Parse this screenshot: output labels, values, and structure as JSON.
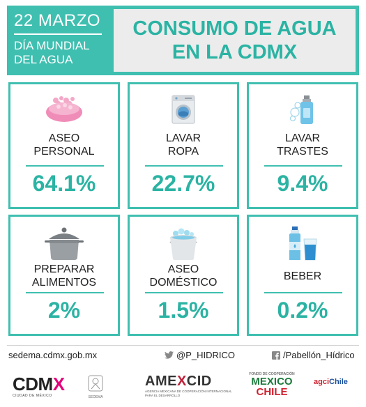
{
  "header": {
    "date": "22 MARZO",
    "event_line1": "DÍA MUNDIAL",
    "event_line2": "DEL AGUA",
    "title_line1": "CONSUMO DE AGUA",
    "title_line2": "EN LA CDMX"
  },
  "cards": [
    {
      "icon": "soap-icon",
      "label_line1": "ASEO",
      "label_line2": "PERSONAL",
      "value": "64.1%"
    },
    {
      "icon": "washing-machine-icon",
      "label_line1": "LAVAR",
      "label_line2": "ROPA",
      "value": "22.7%"
    },
    {
      "icon": "dish-soap-icon",
      "label_line1": "LAVAR",
      "label_line2": "TRASTES",
      "value": "9.4%"
    },
    {
      "icon": "cooking-pot-icon",
      "label_line1": "PREPARAR",
      "label_line2": "ALIMENTOS",
      "value": "2%"
    },
    {
      "icon": "bucket-icon",
      "label_line1": "ASEO",
      "label_line2": "DOMÉSTICO",
      "value": "1.5%"
    },
    {
      "icon": "water-bottle-glass-icon",
      "label_line1": "BEBER",
      "label_line2": "",
      "value": "0.2%"
    }
  ],
  "footer": {
    "website": "sedema.cdmx.gob.mx",
    "twitter": "@P_HIDRICO",
    "facebook": "/Pabellón_Hídrico"
  },
  "logos": {
    "cdmx_main": "CDM",
    "cdmx_x": "X",
    "cdmx_sub": "CIUDAD DE MÉXICO",
    "sedema_sub": "SEDEMA",
    "amexcid_a": "AME",
    "amexcid_x": "X",
    "amexcid_b": "CID",
    "amexcid_sub": "AGENCIA MEXICANA DE COOPERACIÓN INTERNACIONAL PARA EL DESARROLLO",
    "fondo_top": "FONDO DE COOPERACIÓN",
    "fondo_mexico": "MEXICO",
    "fondo_chile": "CHILE",
    "agci_a": "agci",
    "agci_b": "Chile"
  },
  "colors": {
    "accent": "#3fbfb0",
    "value_text": "#2bb3a3",
    "title_bg": "#ececec"
  }
}
